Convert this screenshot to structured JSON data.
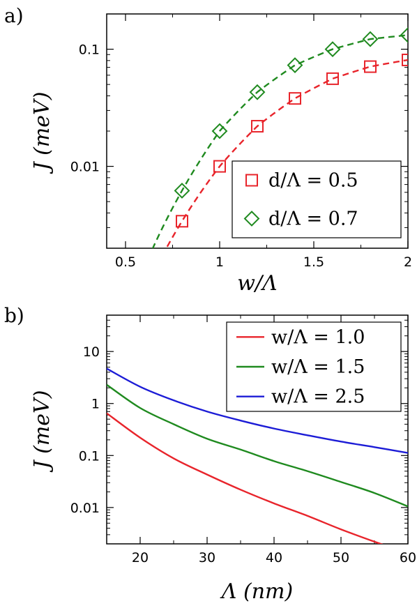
{
  "chart_data": [
    {
      "type": "scatter",
      "panel_label": "a)",
      "xlabel": "w/Λ",
      "ylabel": "J (meV)",
      "xlim": [
        0.4,
        2.0
      ],
      "ylim": [
        0.002,
        0.2
      ],
      "yscale": "log",
      "x_ticks": [
        0.5,
        1,
        1.5,
        2
      ],
      "x_tick_labels": [
        "0.5",
        "1",
        "1.5",
        "2"
      ],
      "y_ticks": [
        0.01,
        0.1
      ],
      "y_tick_labels": [
        "0.01",
        "0.1"
      ],
      "grid": false,
      "legend_position": "bottom-right",
      "series": [
        {
          "name": "d/Λ = 0.5",
          "color": "#e8242b",
          "marker": "square",
          "line": "dashed",
          "x": [
            0.8,
            1.0,
            1.2,
            1.4,
            1.6,
            1.8,
            2.0
          ],
          "values": [
            0.0034,
            0.01,
            0.022,
            0.038,
            0.056,
            0.071,
            0.081
          ]
        },
        {
          "name": "d/Λ = 0.7",
          "color": "#1f8a1f",
          "marker": "diamond",
          "line": "dashed",
          "x": [
            0.8,
            1.0,
            1.2,
            1.4,
            1.6,
            1.8,
            2.0
          ],
          "values": [
            0.0062,
            0.02,
            0.043,
            0.073,
            0.1,
            0.122,
            0.132
          ]
        }
      ]
    },
    {
      "type": "line",
      "panel_label": "b)",
      "xlabel": "Λ (nm)",
      "ylabel": "J (meV)",
      "xlim": [
        15,
        60
      ],
      "ylim": [
        0.002,
        50
      ],
      "yscale": "log",
      "x_ticks": [
        20,
        30,
        40,
        50,
        60
      ],
      "x_tick_labels": [
        "20",
        "30",
        "40",
        "50",
        "60"
      ],
      "y_ticks": [
        0.01,
        0.1,
        1,
        10
      ],
      "y_tick_labels": [
        "0.01",
        "0.1",
        "1",
        "10"
      ],
      "grid": false,
      "legend_position": "top-right",
      "series": [
        {
          "name": "w/Λ = 1.0",
          "color": "#e8242b",
          "x": [
            15,
            20,
            25,
            30,
            35,
            40,
            45,
            50,
            55,
            57
          ],
          "values": [
            0.65,
            0.22,
            0.088,
            0.043,
            0.022,
            0.012,
            0.0069,
            0.0038,
            0.0022,
            0.0018
          ]
        },
        {
          "name": "w/Λ = 1.5",
          "color": "#1f8a1f",
          "x": [
            15,
            20,
            25,
            30,
            35,
            40,
            45,
            50,
            55,
            60
          ],
          "values": [
            2.3,
            0.82,
            0.4,
            0.21,
            0.13,
            0.078,
            0.05,
            0.031,
            0.019,
            0.0105
          ]
        },
        {
          "name": "w/Λ = 2.5",
          "color": "#1c1cd6",
          "x": [
            15,
            20,
            25,
            30,
            35,
            40,
            45,
            50,
            55,
            60
          ],
          "values": [
            4.7,
            2.1,
            1.15,
            0.7,
            0.47,
            0.33,
            0.245,
            0.185,
            0.145,
            0.112
          ]
        }
      ]
    }
  ]
}
